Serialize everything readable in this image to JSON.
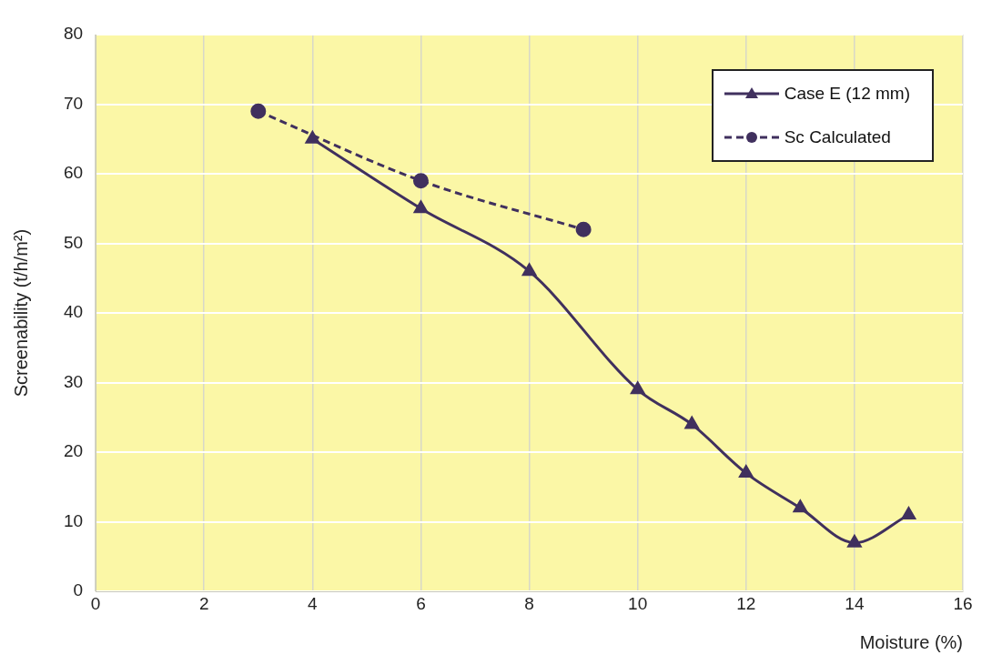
{
  "chart_data": {
    "type": "line",
    "xlabel": "Moisture (%)",
    "ylabel": "Screenability (t/h/m²)",
    "xlim": [
      0,
      16
    ],
    "xticks": [
      0,
      2,
      4,
      6,
      8,
      10,
      12,
      14,
      16
    ],
    "ylim": [
      0,
      80
    ],
    "yticks": [
      0,
      10,
      20,
      30,
      40,
      50,
      60,
      70,
      80
    ],
    "grid": true,
    "legend": "top right",
    "series": [
      {
        "name": "Case E (12 mm)",
        "color": "#40305e",
        "marker": "triangle",
        "line_style": "solid",
        "x": [
          4,
          6,
          8,
          10,
          11,
          12,
          13,
          14,
          15
        ],
        "values": [
          65,
          55,
          46,
          29,
          24,
          17,
          12,
          7,
          11
        ]
      },
      {
        "name": "Sc Calculated",
        "color": "#40305e",
        "marker": "circle",
        "line_style": "dashed",
        "x": [
          3,
          6,
          9
        ],
        "values": [
          69,
          59,
          52
        ]
      }
    ]
  }
}
